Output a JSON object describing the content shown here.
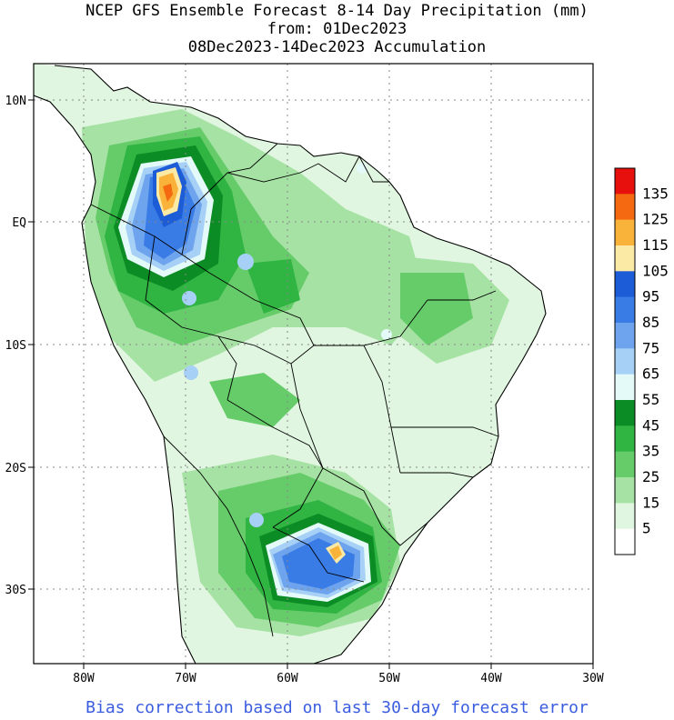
{
  "title": {
    "line1": "NCEP GFS Ensemble Forecast 8-14 Day Precipitation (mm)",
    "line2": "from: 01Dec2023",
    "line3": "08Dec2023-14Dec2023 Accumulation"
  },
  "map": {
    "lat_labels": [
      "10N",
      "EQ",
      "10S",
      "20S",
      "30S"
    ],
    "lon_labels": [
      "80W",
      "70W",
      "60W",
      "50W",
      "40W",
      "30W"
    ],
    "lon_range": [
      -85,
      -30
    ],
    "lat_range": [
      -36,
      13
    ]
  },
  "colorbar": {
    "labels": [
      "135",
      "125",
      "115",
      "105",
      "95",
      "85",
      "75",
      "65",
      "55",
      "45",
      "35",
      "25",
      "15",
      "5"
    ],
    "colors": [
      "#e8100c",
      "#f56a10",
      "#f9b33a",
      "#fbe9a6",
      "#1c5cd6",
      "#3a7ce6",
      "#6ea4ee",
      "#a6d0f6",
      "#e4faf8",
      "#0c8c24",
      "#30b442",
      "#66cc6a",
      "#a6e2a4",
      "#e0f6e0",
      "#ffffff"
    ]
  },
  "footer": "Bias correction based on last 30-day forecast error"
}
